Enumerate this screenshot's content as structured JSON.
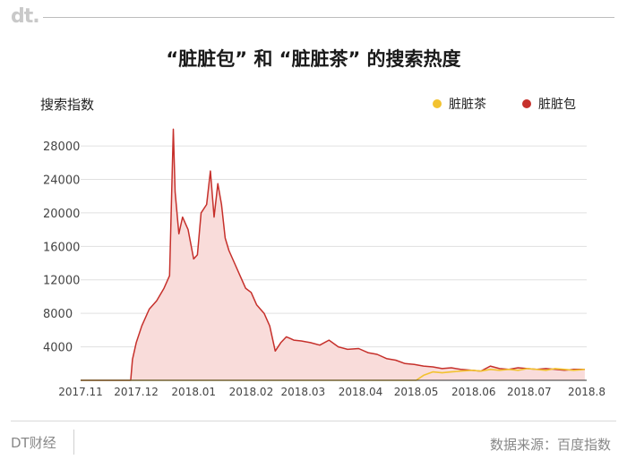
{
  "header": {
    "logo_text": "dt."
  },
  "title": "“脏脏包” 和 “脏脏茶” 的搜索热度",
  "footer": {
    "left": "DT财经",
    "right": "数据来源：百度指数"
  },
  "colors": {
    "dirty_bun": "#c6302b",
    "dirty_bun_fill": "#f9dcda",
    "dirty_tea": "#f2c230",
    "axis": "#333333",
    "grid": "#e0e0e0",
    "tick_text": "#444444"
  },
  "chart_data": {
    "type": "area",
    "title": "“脏脏包” 和 “脏脏茶” 的搜索热度",
    "ylabel": "搜索指数",
    "xlabel": "",
    "ylim": [
      0,
      31000
    ],
    "yticks": [
      4000,
      8000,
      12000,
      16000,
      20000,
      24000,
      28000
    ],
    "xlim": [
      "2017-11-01",
      "2018-08-01"
    ],
    "xticks": [
      {
        "label": "2017.11",
        "date": "2017-11-01"
      },
      {
        "label": "2017.12",
        "date": "2017-12-01"
      },
      {
        "label": "2018.01",
        "date": "2018-01-01"
      },
      {
        "label": "2018.02",
        "date": "2018-02-01"
      },
      {
        "label": "2018.03",
        "date": "2018-03-01"
      },
      {
        "label": "2018.04",
        "date": "2018-04-01"
      },
      {
        "label": "2018.05",
        "date": "2018-05-01"
      },
      {
        "label": "2018.06",
        "date": "2018-06-01"
      },
      {
        "label": "2018.07",
        "date": "2018-07-01"
      },
      {
        "label": "2018.8",
        "date": "2018-08-01"
      }
    ],
    "grid": true,
    "legend_position": "top-right",
    "series": [
      {
        "name": "脏脏茶",
        "color": "#f2c230",
        "x": [
          "2017-11-01",
          "2018-05-01",
          "2018-05-05",
          "2018-05-10",
          "2018-05-15",
          "2018-05-20",
          "2018-05-25",
          "2018-05-31",
          "2018-06-05",
          "2018-06-10",
          "2018-06-15",
          "2018-06-20",
          "2018-06-25",
          "2018-06-30",
          "2018-07-05",
          "2018-07-10",
          "2018-07-15",
          "2018-07-20",
          "2018-07-25",
          "2018-07-31"
        ],
        "values": [
          0,
          0,
          600,
          1000,
          900,
          1000,
          1100,
          1200,
          1100,
          1300,
          1200,
          1300,
          1200,
          1400,
          1300,
          1200,
          1400,
          1300,
          1200,
          1300
        ]
      },
      {
        "name": "脏脏包",
        "color": "#c6302b",
        "x": [
          "2017-11-01",
          "2017-11-28",
          "2017-11-29",
          "2017-12-01",
          "2017-12-04",
          "2017-12-08",
          "2017-12-12",
          "2017-12-16",
          "2017-12-19",
          "2017-12-21",
          "2017-12-22",
          "2017-12-24",
          "2017-12-26",
          "2017-12-29",
          "2018-01-01",
          "2018-01-03",
          "2018-01-05",
          "2018-01-08",
          "2018-01-10",
          "2018-01-12",
          "2018-01-14",
          "2018-01-16",
          "2018-01-18",
          "2018-01-20",
          "2018-01-23",
          "2018-01-26",
          "2018-01-29",
          "2018-02-01",
          "2018-02-04",
          "2018-02-08",
          "2018-02-11",
          "2018-02-14",
          "2018-02-17",
          "2018-02-20",
          "2018-02-22",
          "2018-02-24",
          "2018-02-28",
          "2018-03-05",
          "2018-03-10",
          "2018-03-15",
          "2018-03-20",
          "2018-03-25",
          "2018-03-31",
          "2018-04-05",
          "2018-04-10",
          "2018-04-15",
          "2018-04-20",
          "2018-04-25",
          "2018-04-30",
          "2018-05-05",
          "2018-05-10",
          "2018-05-15",
          "2018-05-20",
          "2018-05-25",
          "2018-05-31",
          "2018-06-05",
          "2018-06-10",
          "2018-06-15",
          "2018-06-20",
          "2018-06-25",
          "2018-06-30",
          "2018-07-05",
          "2018-07-10",
          "2018-07-15",
          "2018-07-20",
          "2018-07-25",
          "2018-07-31"
        ],
        "values": [
          0,
          0,
          2500,
          4500,
          6500,
          8500,
          9500,
          11000,
          12500,
          30000,
          22500,
          17500,
          19500,
          18000,
          14500,
          15000,
          20000,
          21000,
          25000,
          19500,
          23500,
          21000,
          17000,
          15500,
          14000,
          12500,
          11000,
          10500,
          9000,
          8000,
          6500,
          3500,
          4500,
          5200,
          5000,
          4800,
          4700,
          4500,
          4200,
          4800,
          4000,
          3700,
          3800,
          3300,
          3100,
          2600,
          2400,
          2000,
          1900,
          1700,
          1600,
          1400,
          1500,
          1300,
          1200,
          1100,
          1700,
          1400,
          1300,
          1500,
          1400,
          1300,
          1400,
          1300,
          1200,
          1300,
          1300
        ]
      }
    ]
  }
}
